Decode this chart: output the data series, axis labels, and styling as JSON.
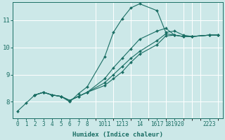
{
  "xlabel": "Humidex (Indice chaleur)",
  "bg_color": "#cce8e8",
  "line_color": "#1a6e64",
  "grid_color": "#ffffff",
  "xlim": [
    -0.5,
    23.5
  ],
  "ylim": [
    7.4,
    11.65
  ],
  "yticks": [
    8,
    9,
    10,
    11
  ],
  "xtick_positions": [
    0,
    1,
    2,
    3,
    4,
    5,
    6,
    7,
    8,
    10,
    11,
    12,
    13,
    14,
    16,
    17,
    18,
    19,
    20,
    22,
    23
  ],
  "xtick_labels": [
    "0",
    "1",
    "2",
    "3",
    "4",
    "5",
    "6",
    "7",
    "8",
    "10",
    "11",
    "12",
    "13",
    "14",
    "16",
    "17",
    "18",
    "19",
    "20",
    "22",
    "23"
  ],
  "lines": [
    {
      "x": [
        0,
        1,
        2,
        3,
        4,
        5,
        6,
        7,
        8,
        10,
        11,
        12,
        13,
        14,
        16,
        17,
        18,
        19,
        20,
        22,
        23
      ],
      "y": [
        7.65,
        7.95,
        8.25,
        8.35,
        8.25,
        8.2,
        8.0,
        8.3,
        8.55,
        9.65,
        10.55,
        11.05,
        11.45,
        11.6,
        11.35,
        10.55,
        10.6,
        10.45,
        10.4,
        10.45,
        10.45
      ]
    },
    {
      "x": [
        2,
        3,
        4,
        5,
        6,
        7,
        8,
        10,
        11,
        12,
        13,
        14,
        16,
        17,
        18,
        19,
        20,
        22,
        23
      ],
      "y": [
        8.25,
        8.35,
        8.25,
        8.2,
        8.05,
        8.2,
        8.35,
        8.85,
        9.25,
        9.6,
        9.95,
        10.3,
        10.6,
        10.7,
        10.45,
        10.4,
        10.4,
        10.45,
        10.45
      ]
    },
    {
      "x": [
        2,
        3,
        4,
        5,
        6,
        7,
        8,
        10,
        11,
        12,
        13,
        14,
        16,
        17,
        18,
        19,
        20,
        22,
        23
      ],
      "y": [
        8.25,
        8.35,
        8.25,
        8.2,
        8.05,
        8.2,
        8.35,
        8.7,
        9.0,
        9.3,
        9.6,
        9.85,
        10.25,
        10.5,
        10.45,
        10.4,
        10.4,
        10.45,
        10.45
      ]
    },
    {
      "x": [
        2,
        3,
        4,
        5,
        6,
        7,
        8,
        10,
        11,
        12,
        13,
        14,
        16,
        17,
        18,
        19,
        20,
        22,
        23
      ],
      "y": [
        8.25,
        8.35,
        8.25,
        8.2,
        8.05,
        8.2,
        8.35,
        8.6,
        8.85,
        9.1,
        9.45,
        9.75,
        10.1,
        10.42,
        10.45,
        10.4,
        10.4,
        10.45,
        10.45
      ]
    }
  ],
  "xlabel_fontsize": 6.5,
  "tick_fontsize": 5.5,
  "ytick_fontsize": 6.5
}
